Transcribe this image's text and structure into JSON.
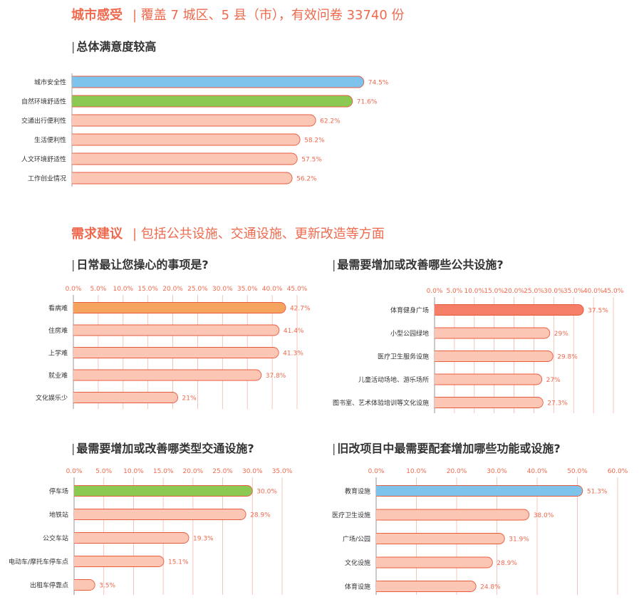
{
  "sections": {
    "perception": {
      "highlight": "城市感受",
      "subtitle": "| 覆盖 7 城区、5 县（市），有效问卷 33740 份"
    },
    "demands": {
      "highlight": "需求建议",
      "subtitle": "| 包括公共设施、交通设施、更新改造等方面"
    }
  },
  "colors": {
    "accent": "#ee6a4e",
    "blue": "#7ec3ec",
    "green": "#8bc952",
    "orange": "#f4a45e",
    "salmon": "#f47f66",
    "pink": "#fbc6b3",
    "bar_border": "#e85a3d",
    "grid": "#f2b6aa"
  },
  "chart_data": [
    {
      "id": "satisfaction",
      "type": "bar",
      "title": "总体满意度较高",
      "categories": [
        "城市安全性",
        "自然环境舒适性",
        "交通出行便利性",
        "生活便利性",
        "人文环境舒适性",
        "工作创业情况"
      ],
      "values": [
        74.5,
        71.6,
        62.2,
        58.2,
        57.5,
        56.2
      ],
      "value_labels": [
        "74.5%",
        "71.6%",
        "62.2%",
        "58.2%",
        "57.5%",
        "56.2%"
      ],
      "bar_colors": [
        "blue",
        "green",
        "pink",
        "pink",
        "pink",
        "pink"
      ],
      "xlim": [
        0,
        80
      ],
      "ticks": []
    },
    {
      "id": "concerns",
      "type": "bar",
      "title": "日常最让您操心的事项是?",
      "categories": [
        "看病难",
        "住房难",
        "上学难",
        "就业难",
        "文化娱乐少"
      ],
      "values": [
        42.7,
        41.4,
        41.3,
        37.8,
        21
      ],
      "value_labels": [
        "42.7%",
        "41.4%",
        "41.3%",
        "37.8%",
        "21%"
      ],
      "bar_colors": [
        "orange",
        "pink",
        "pink",
        "pink",
        "pink"
      ],
      "xlim": [
        0,
        45
      ],
      "ticks": [
        "0.0%",
        "5.0%",
        "10.0%",
        "15.0%",
        "20.0%",
        "25.0%",
        "30.0%",
        "35.0%",
        "40.0%",
        "45.0%"
      ]
    },
    {
      "id": "public_facilities",
      "type": "bar",
      "title": "最需要增加或改善哪些公共设施?",
      "categories": [
        "体育健身广场",
        "小型公园绿地",
        "医疗卫生服务设施",
        "儿童活动场地、游乐场所",
        "图书室、艺术体验培训等文化设施"
      ],
      "values": [
        37.5,
        29,
        29.8,
        27,
        27.3
      ],
      "value_labels": [
        "37.5%",
        "29%",
        "29.8%",
        "27%",
        "27.3%"
      ],
      "bar_colors": [
        "salmon",
        "pink",
        "pink",
        "pink",
        "pink"
      ],
      "xlim": [
        0,
        45
      ],
      "ticks": [
        "0.0%",
        "5.0%",
        "10.0%",
        "15.0%",
        "20.0%",
        "25.0%",
        "30.0%",
        "35.0%",
        "40.0%",
        "45.0%"
      ]
    },
    {
      "id": "transport_facilities",
      "type": "bar",
      "title": "最需要增加或改善哪类型交通设施?",
      "categories": [
        "停车场",
        "地铁站",
        "公交车站",
        "电动车/摩托车停车点",
        "出租车停靠点"
      ],
      "values": [
        30.0,
        28.9,
        19.3,
        15.1,
        3.5
      ],
      "value_labels": [
        "30.0%",
        "28.9%",
        "19.3%",
        "15.1%",
        "3.5%"
      ],
      "bar_colors": [
        "green",
        "pink",
        "pink",
        "pink",
        "pink"
      ],
      "xlim": [
        0,
        35
      ],
      "ticks": [
        "0.0%",
        "5.0%",
        "10.0%",
        "15.0%",
        "20.0%",
        "25.0%",
        "30.0%",
        "35.0%"
      ]
    },
    {
      "id": "renovation",
      "type": "bar",
      "title": "旧改项目中最需要配套增加哪些功能或设施?",
      "categories": [
        "教育设施",
        "医疗卫生设施",
        "广场/公园",
        "文化设施",
        "体育设施"
      ],
      "values": [
        51.3,
        38.0,
        31.9,
        28.9,
        24.8
      ],
      "value_labels": [
        "51.3%",
        "38.0%",
        "31.9%",
        "28.9%",
        "24.8%"
      ],
      "bar_colors": [
        "blue",
        "pink",
        "pink",
        "pink",
        "pink"
      ],
      "xlim": [
        0,
        60
      ],
      "ticks": [
        "0.0%",
        "10.0%",
        "20.0%",
        "30.0%",
        "40.0%",
        "50.0%",
        "60.0%"
      ]
    }
  ]
}
